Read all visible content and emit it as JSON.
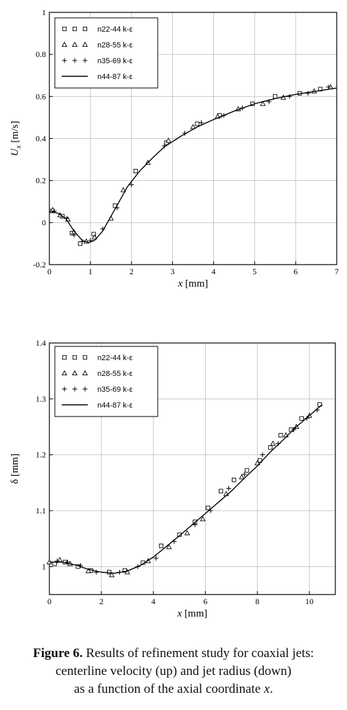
{
  "chart_data": [
    {
      "type": "scatter",
      "xlabel_var": "x",
      "xlabel_unit": "[mm]",
      "ylabel_var": "U",
      "ylabel_sub": "x",
      "ylabel_unit": "[m/s]",
      "xlim": [
        0,
        7
      ],
      "ylim": [
        -0.2,
        1.0
      ],
      "xticks": [
        "0",
        "1",
        "2",
        "3",
        "4",
        "5",
        "6",
        "7"
      ],
      "yticks": [
        "-0.2",
        "0",
        "0.2",
        "0.4",
        "0.6",
        "0.8",
        "1"
      ],
      "grid": true,
      "legend_position": "top-left",
      "series": [
        {
          "name": "n22-44 k-ε",
          "marker": "square",
          "x": [
            0.05,
            0.32,
            0.55,
            0.75,
            1.08,
            1.6,
            2.1,
            2.85,
            3.6,
            4.15,
            4.95,
            5.5,
            6.1,
            6.6
          ],
          "y": [
            0.055,
            0.03,
            -0.05,
            -0.1,
            -0.055,
            0.08,
            0.245,
            0.38,
            0.47,
            0.51,
            0.565,
            0.6,
            0.615,
            0.635
          ]
        },
        {
          "name": "n28-55 k-ε",
          "marker": "triangle",
          "x": [
            0.08,
            0.26,
            0.45,
            0.6,
            0.9,
            1.1,
            1.5,
            1.8,
            2.4,
            2.9,
            3.5,
            4.1,
            4.6,
            5.2,
            5.7,
            6.45,
            6.85
          ],
          "y": [
            0.06,
            0.035,
            0.015,
            -0.045,
            -0.09,
            -0.07,
            0.02,
            0.155,
            0.285,
            0.39,
            0.455,
            0.505,
            0.54,
            0.565,
            0.595,
            0.625,
            0.645
          ]
        },
        {
          "name": "n35-69 k-ε",
          "marker": "plus",
          "x": [
            0.12,
            0.42,
            0.6,
            0.8,
            1.0,
            1.3,
            1.65,
            2.0,
            2.8,
            3.3,
            3.7,
            4.25,
            4.7,
            5.35,
            5.85,
            6.3,
            6.8
          ],
          "y": [
            0.055,
            0.02,
            -0.06,
            -0.09,
            -0.085,
            -0.03,
            0.07,
            0.18,
            0.365,
            0.425,
            0.475,
            0.51,
            0.545,
            0.575,
            0.6,
            0.615,
            0.645
          ]
        },
        {
          "name": "n44-87 k-ε",
          "marker": "line",
          "x": [
            0.0,
            0.2,
            0.4,
            0.6,
            0.8,
            0.95,
            1.1,
            1.3,
            1.5,
            1.7,
            1.9,
            2.2,
            2.5,
            2.8,
            3.2,
            3.6,
            4.0,
            4.5,
            5.0,
            5.5,
            6.0,
            6.5,
            7.0
          ],
          "y": [
            0.055,
            0.045,
            0.02,
            -0.04,
            -0.085,
            -0.095,
            -0.085,
            -0.04,
            0.03,
            0.1,
            0.17,
            0.245,
            0.305,
            0.36,
            0.41,
            0.455,
            0.49,
            0.53,
            0.565,
            0.59,
            0.61,
            0.625,
            0.64
          ]
        }
      ]
    },
    {
      "type": "scatter",
      "xlabel_var": "x",
      "xlabel_unit": "[mm]",
      "ylabel_var": "δ",
      "ylabel_sub": "",
      "ylabel_unit": "[mm]",
      "xlim": [
        0,
        11
      ],
      "ylim": [
        0.95,
        1.4
      ],
      "xticks": [
        "0",
        "2",
        "4",
        "6",
        "8",
        "10"
      ],
      "xtick_values": [
        0,
        2,
        4,
        6,
        8,
        10
      ],
      "yticks": [
        "1",
        "1.1",
        "1.2",
        "1.3",
        "1.4"
      ],
      "ytick_values": [
        1.0,
        1.1,
        1.2,
        1.3,
        1.4
      ],
      "grid": true,
      "legend_position": "top-left",
      "series": [
        {
          "name": "n22-44 k-ε",
          "marker": "square",
          "x": [
            0.2,
            0.6,
            1.1,
            1.6,
            2.3,
            2.9,
            3.6,
            4.3,
            5.0,
            5.6,
            6.1,
            6.6,
            7.1,
            7.6,
            8.1,
            8.5,
            8.9,
            9.3,
            9.7,
            10.4
          ],
          "y": [
            1.005,
            1.008,
            1.0,
            0.993,
            0.99,
            0.993,
            1.007,
            1.037,
            1.057,
            1.08,
            1.105,
            1.135,
            1.155,
            1.172,
            1.19,
            1.213,
            1.235,
            1.245,
            1.265,
            1.29
          ]
        },
        {
          "name": "n28-55 k-ε",
          "marker": "triangle",
          "x": [
            0.0,
            0.4,
            0.8,
            1.5,
            2.4,
            3.0,
            3.8,
            4.6,
            5.3,
            5.9,
            6.8,
            7.4,
            8.0,
            8.6,
            9.1,
            9.5,
            10.0
          ],
          "y": [
            1.008,
            1.012,
            1.005,
            0.992,
            0.985,
            0.99,
            1.01,
            1.035,
            1.06,
            1.085,
            1.13,
            1.16,
            1.185,
            1.22,
            1.235,
            1.25,
            1.27
          ]
        },
        {
          "name": "n35-69 k-ε",
          "marker": "plus",
          "x": [
            0.3,
            0.7,
            1.2,
            1.8,
            2.7,
            3.4,
            4.1,
            4.8,
            5.6,
            6.2,
            6.9,
            7.5,
            8.2,
            8.8,
            9.4,
            9.9,
            10.3
          ],
          "y": [
            1.01,
            1.008,
            1.002,
            0.99,
            0.99,
            1.0,
            1.015,
            1.045,
            1.075,
            1.1,
            1.14,
            1.165,
            1.2,
            1.22,
            1.245,
            1.265,
            1.28
          ]
        },
        {
          "name": "n44-87 k-ε",
          "marker": "line",
          "x": [
            0.0,
            0.5,
            1.0,
            1.5,
            2.0,
            2.5,
            3.0,
            3.5,
            4.0,
            4.5,
            5.0,
            5.5,
            6.0,
            6.5,
            7.0,
            7.5,
            8.0,
            8.5,
            9.0,
            9.5,
            10.0,
            10.5
          ],
          "y": [
            1.008,
            1.008,
            1.003,
            0.995,
            0.99,
            0.988,
            0.992,
            1.002,
            1.017,
            1.036,
            1.055,
            1.075,
            1.095,
            1.115,
            1.135,
            1.158,
            1.18,
            1.205,
            1.227,
            1.25,
            1.27,
            1.29
          ]
        }
      ]
    }
  ],
  "caption": {
    "label": "Figure 6.",
    "line1": " Results of refinement study for coaxial jets:",
    "line2": "centerline velocity (up) and jet radius (down)",
    "line3_prefix": "as a function of the axial coordinate ",
    "line3_var": "x",
    "line3_suffix": "."
  }
}
